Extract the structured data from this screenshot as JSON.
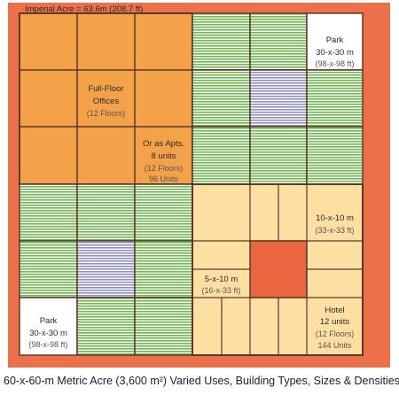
{
  "title": "Imperial Acre = 63.6m (208.7 ft)",
  "caption": "60-x-60-m Metric Acre (3,600 m²) Varied Uses, Building Types, Sizes & Densities",
  "colors": {
    "acre_border": "#ec7049",
    "offices": "#f4a24a",
    "green_stripes": "#6fb84f",
    "blue_stripes": "#8f8fc4",
    "small_units": "#fddfa2",
    "center_square": "#ea6540",
    "grid_lines": "#5a3a2a"
  },
  "blocks": {
    "park_top": {
      "title": "Park",
      "line1": "30-x-30 m",
      "line2": "(98-x-98 ft)"
    },
    "offices": {
      "line1": "Full-Floor",
      "line2": "Offices",
      "line3": "(12 Floors)"
    },
    "apartments": {
      "line1": "Or as Apts.",
      "line2": "8 units",
      "line3": "(12 Floors)",
      "line4": "96 Units"
    },
    "unit_10x10": {
      "line1": "10-x-10 m",
      "line2": "(33-x-33 ft)"
    },
    "unit_5x10": {
      "line1": "5-x-10 m",
      "line2": "(16-x-33 ft)"
    },
    "park_bottom": {
      "title": "Park",
      "line1": "30-x-30 m",
      "line2": "(98-x-98 ft)"
    },
    "hotel": {
      "line1": "Hotel",
      "line2": "12 units",
      "line3": "(12 Floors)",
      "line4": "144 Units"
    }
  }
}
